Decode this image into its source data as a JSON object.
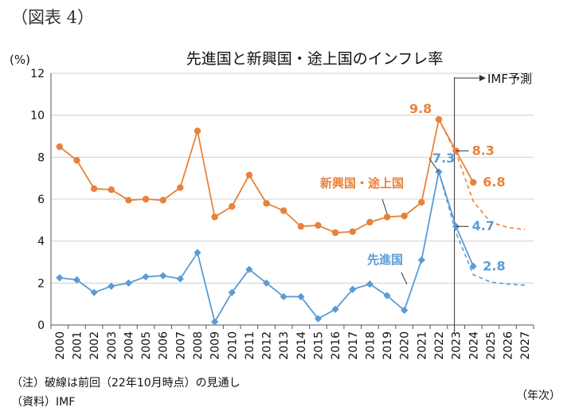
{
  "figure_label": "（図表 4）",
  "note": "（注）破線は前回（22年10月時点）の見通し",
  "source": "（資料）IMF",
  "x_unit": "（年次）",
  "colors": {
    "emerging": "#e8823a",
    "advanced": "#5b9bd5",
    "axis": "#555555",
    "grid": "#d0d0d0",
    "forecast_line": "#333333"
  },
  "chart_data": {
    "type": "line",
    "title": "先進国と新興国・途上国のインフレ率",
    "ylabel": "(%)",
    "xlabel": "",
    "ylim": [
      0,
      12
    ],
    "yticks": [
      0,
      2,
      4,
      6,
      8,
      10,
      12
    ],
    "grid": true,
    "x": [
      "2000",
      "2001",
      "2002",
      "2003",
      "2004",
      "2005",
      "2006",
      "2007",
      "2008",
      "2009",
      "2010",
      "2011",
      "2012",
      "2013",
      "2014",
      "2015",
      "2016",
      "2017",
      "2018",
      "2019",
      "2020",
      "2021",
      "2022",
      "2023",
      "2024",
      "2025",
      "2026",
      "2027"
    ],
    "forecast_marker": {
      "x": "2023",
      "label": "IMF予測"
    },
    "series": [
      {
        "name": "新興国・途上国",
        "color": "#e8823a",
        "marker": "circle",
        "values": [
          8.5,
          7.85,
          6.5,
          6.45,
          5.95,
          6.0,
          5.95,
          6.55,
          9.25,
          5.15,
          5.65,
          7.15,
          5.8,
          5.45,
          4.7,
          4.75,
          4.4,
          4.45,
          4.9,
          5.15,
          5.2,
          5.85,
          9.8,
          8.3,
          6.8,
          null,
          null,
          null
        ],
        "previous_forecast": {
          "x": [
            "2022",
            "2023",
            "2024",
            "2025",
            "2026",
            "2027"
          ],
          "values": [
            9.8,
            8.2,
            5.9,
            4.9,
            4.65,
            4.55
          ]
        }
      },
      {
        "name": "先進国",
        "color": "#5b9bd5",
        "marker": "diamond",
        "values": [
          2.25,
          2.15,
          1.55,
          1.85,
          2.0,
          2.3,
          2.35,
          2.2,
          3.45,
          0.15,
          1.55,
          2.65,
          2.0,
          1.35,
          1.35,
          0.3,
          0.75,
          1.7,
          1.95,
          1.4,
          0.7,
          3.1,
          7.3,
          4.7,
          2.8,
          null,
          null,
          null
        ],
        "previous_forecast": {
          "x": [
            "2022",
            "2023",
            "2024",
            "2025",
            "2026",
            "2027"
          ],
          "values": [
            7.3,
            4.4,
            2.4,
            2.05,
            1.95,
            1.9
          ]
        }
      }
    ],
    "annotations": [
      {
        "text": "9.8",
        "series": "新興国・途上国",
        "x": "2022"
      },
      {
        "text": "8.3",
        "series": "新興国・途上国",
        "x": "2023"
      },
      {
        "text": "6.8",
        "series": "新興国・途上国",
        "x": "2024"
      },
      {
        "text": "7.3",
        "series": "先進国",
        "x": "2022"
      },
      {
        "text": "4.7",
        "series": "先進国",
        "x": "2023"
      },
      {
        "text": "2.8",
        "series": "先進国",
        "x": "2024"
      }
    ]
  }
}
